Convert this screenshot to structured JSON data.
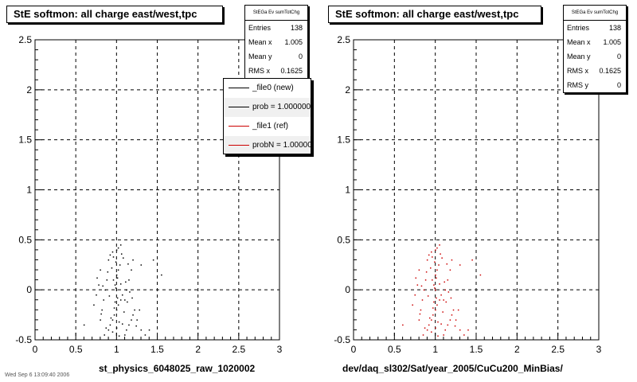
{
  "footer_text": "Wed Sep  6 13:09:40 2006",
  "chart_data": [
    {
      "type": "scatter",
      "title": "StE softmon: all charge east/west,tpc",
      "xlabel": "st_physics_6048025_raw_1020002",
      "ylabel": "",
      "xlim": [
        0,
        3
      ],
      "ylim": [
        -0.5,
        2.5
      ],
      "x_ticks": [
        "0",
        "0.5",
        "1",
        "1.5",
        "2",
        "2.5",
        "3"
      ],
      "y_ticks": [
        "-0.5",
        "0",
        "0.5",
        "1",
        "1.5",
        "2",
        "2.5"
      ],
      "grid": true,
      "marker_color": "#000000",
      "stats": {
        "title": "StEGa Ev sumTotChg",
        "rows": [
          {
            "label": "Entries",
            "value": "138"
          },
          {
            "label": "Mean x",
            "value": "1.005"
          },
          {
            "label": "Mean y",
            "value": "0"
          },
          {
            "label": "RMS x",
            "value": "0.1625"
          }
        ]
      },
      "legend": {
        "placement": "top-right",
        "entries": [
          {
            "label": "_file0 (new)",
            "color": "#000000"
          },
          {
            "label": "prob = 1.000000",
            "color": "#000000"
          },
          {
            "label": "_file1 (ref)",
            "color": "#cc0000"
          },
          {
            "label": "probN = 1.000000",
            "color": "#cc0000"
          }
        ]
      },
      "points": [
        [
          0.85,
          -0.45
        ],
        [
          0.9,
          -0.4
        ],
        [
          0.92,
          -0.35
        ],
        [
          0.95,
          -0.3
        ],
        [
          0.97,
          -0.25
        ],
        [
          1.0,
          -0.2
        ],
        [
          1.02,
          -0.15
        ],
        [
          1.05,
          -0.1
        ],
        [
          1.07,
          -0.05
        ],
        [
          1.0,
          0.0
        ],
        [
          0.98,
          0.05
        ],
        [
          0.96,
          0.1
        ],
        [
          1.0,
          0.15
        ],
        [
          1.02,
          0.2
        ],
        [
          1.04,
          0.25
        ],
        [
          0.9,
          0.3
        ],
        [
          0.92,
          0.35
        ],
        [
          0.95,
          0.38
        ],
        [
          1.0,
          0.4
        ],
        [
          1.05,
          0.45
        ],
        [
          1.1,
          -0.45
        ],
        [
          1.12,
          -0.4
        ],
        [
          1.15,
          -0.35
        ],
        [
          1.18,
          -0.3
        ],
        [
          1.2,
          -0.25
        ],
        [
          1.22,
          -0.2
        ],
        [
          1.1,
          -0.1
        ],
        [
          1.12,
          0.0
        ],
        [
          1.15,
          0.1
        ],
        [
          1.18,
          0.2
        ],
        [
          1.2,
          0.3
        ],
        [
          0.8,
          -0.3
        ],
        [
          0.82,
          -0.2
        ],
        [
          0.84,
          -0.1
        ],
        [
          0.86,
          0.0
        ],
        [
          0.88,
          0.1
        ],
        [
          0.8,
          0.2
        ],
        [
          0.78,
          0.05
        ],
        [
          0.75,
          -0.05
        ],
        [
          0.72,
          -0.15
        ],
        [
          1.3,
          -0.4
        ],
        [
          1.25,
          -0.3
        ],
        [
          1.28,
          -0.2
        ],
        [
          1.35,
          -0.45
        ],
        [
          1.4,
          -0.4
        ],
        [
          1.45,
          0.3
        ],
        [
          1.3,
          0.25
        ],
        [
          1.55,
          0.15
        ],
        [
          0.6,
          -0.35
        ],
        [
          1.08,
          0.32
        ],
        [
          0.95,
          -0.42
        ],
        [
          1.0,
          -0.38
        ],
        [
          1.03,
          -0.32
        ],
        [
          0.97,
          -0.18
        ],
        [
          1.01,
          -0.08
        ],
        [
          0.99,
          0.02
        ],
        [
          1.01,
          0.12
        ],
        [
          0.94,
          0.22
        ],
        [
          0.99,
          0.28
        ],
        [
          1.06,
          0.36
        ],
        [
          0.87,
          -0.38
        ],
        [
          0.93,
          -0.28
        ],
        [
          1.09,
          -0.22
        ],
        [
          1.13,
          -0.12
        ],
        [
          1.16,
          -0.02
        ],
        [
          0.89,
          0.18
        ],
        [
          1.11,
          0.08
        ],
        [
          0.91,
          -0.06
        ],
        [
          1.14,
          0.26
        ],
        [
          0.83,
          0.04
        ],
        [
          1.03,
          -0.46
        ],
        [
          1.07,
          -0.34
        ],
        [
          0.96,
          0.33
        ],
        [
          1.19,
          -0.08
        ],
        [
          0.81,
          -0.24
        ],
        [
          1.24,
          -0.36
        ],
        [
          0.76,
          0.12
        ],
        [
          1.05,
          0.06
        ],
        [
          0.98,
          -0.12
        ],
        [
          1.02,
          0.42
        ]
      ]
    },
    {
      "type": "scatter",
      "title": "StE softmon: all charge east/west,tpc",
      "xlabel": "dev/daq_sl302/Sat/year_2005/CuCu200_MinBias/",
      "ylabel": "",
      "xlim": [
        0,
        3
      ],
      "ylim": [
        -0.5,
        2.5
      ],
      "x_ticks": [
        "0",
        "0.5",
        "1",
        "1.5",
        "2",
        "2.5",
        "3"
      ],
      "y_ticks": [
        "-0.5",
        "0",
        "0.5",
        "1",
        "1.5",
        "2",
        "2.5"
      ],
      "grid": true,
      "marker_color": "#cc0000",
      "stats": {
        "title": "StEGa Ev sumTotChg",
        "rows": [
          {
            "label": "Entries",
            "value": "138"
          },
          {
            "label": "Mean x",
            "value": "1.005"
          },
          {
            "label": "Mean y",
            "value": "0"
          },
          {
            "label": "RMS x",
            "value": "0.1625"
          },
          {
            "label": "RMS y",
            "value": "0"
          }
        ]
      },
      "points": [
        [
          0.85,
          -0.45
        ],
        [
          0.9,
          -0.4
        ],
        [
          0.92,
          -0.35
        ],
        [
          0.95,
          -0.3
        ],
        [
          0.97,
          -0.25
        ],
        [
          1.0,
          -0.2
        ],
        [
          1.02,
          -0.15
        ],
        [
          1.05,
          -0.1
        ],
        [
          1.07,
          -0.05
        ],
        [
          1.0,
          0.0
        ],
        [
          0.98,
          0.05
        ],
        [
          0.96,
          0.1
        ],
        [
          1.0,
          0.15
        ],
        [
          1.02,
          0.2
        ],
        [
          1.04,
          0.25
        ],
        [
          0.9,
          0.3
        ],
        [
          0.92,
          0.35
        ],
        [
          0.95,
          0.38
        ],
        [
          1.0,
          0.4
        ],
        [
          1.05,
          0.45
        ],
        [
          1.1,
          -0.45
        ],
        [
          1.12,
          -0.4
        ],
        [
          1.15,
          -0.35
        ],
        [
          1.18,
          -0.3
        ],
        [
          1.2,
          -0.25
        ],
        [
          1.22,
          -0.2
        ],
        [
          1.1,
          -0.1
        ],
        [
          1.12,
          0.0
        ],
        [
          1.15,
          0.1
        ],
        [
          1.18,
          0.2
        ],
        [
          1.2,
          0.3
        ],
        [
          0.8,
          -0.3
        ],
        [
          0.82,
          -0.2
        ],
        [
          0.84,
          -0.1
        ],
        [
          0.86,
          0.0
        ],
        [
          0.88,
          0.1
        ],
        [
          0.8,
          0.2
        ],
        [
          0.78,
          0.05
        ],
        [
          0.75,
          -0.05
        ],
        [
          0.72,
          -0.15
        ],
        [
          1.3,
          -0.4
        ],
        [
          1.25,
          -0.3
        ],
        [
          1.28,
          -0.2
        ],
        [
          1.35,
          -0.45
        ],
        [
          1.4,
          -0.4
        ],
        [
          1.45,
          0.3
        ],
        [
          1.3,
          0.25
        ],
        [
          1.55,
          0.15
        ],
        [
          0.6,
          -0.35
        ],
        [
          1.08,
          0.32
        ],
        [
          0.95,
          -0.42
        ],
        [
          1.0,
          -0.38
        ],
        [
          1.03,
          -0.32
        ],
        [
          0.97,
          -0.18
        ],
        [
          1.01,
          -0.08
        ],
        [
          0.99,
          0.02
        ],
        [
          1.01,
          0.12
        ],
        [
          0.94,
          0.22
        ],
        [
          0.99,
          0.28
        ],
        [
          1.06,
          0.36
        ],
        [
          0.87,
          -0.38
        ],
        [
          0.93,
          -0.28
        ],
        [
          1.09,
          -0.22
        ],
        [
          1.13,
          -0.12
        ],
        [
          1.16,
          -0.02
        ],
        [
          0.89,
          0.18
        ],
        [
          1.11,
          0.08
        ],
        [
          0.91,
          -0.06
        ],
        [
          1.14,
          0.26
        ],
        [
          0.83,
          0.04
        ],
        [
          1.03,
          -0.46
        ],
        [
          1.07,
          -0.34
        ],
        [
          0.96,
          0.33
        ],
        [
          1.19,
          -0.08
        ],
        [
          0.81,
          -0.24
        ],
        [
          1.24,
          -0.36
        ],
        [
          0.76,
          0.12
        ],
        [
          1.05,
          0.06
        ],
        [
          0.98,
          -0.12
        ],
        [
          1.02,
          0.42
        ]
      ]
    }
  ]
}
